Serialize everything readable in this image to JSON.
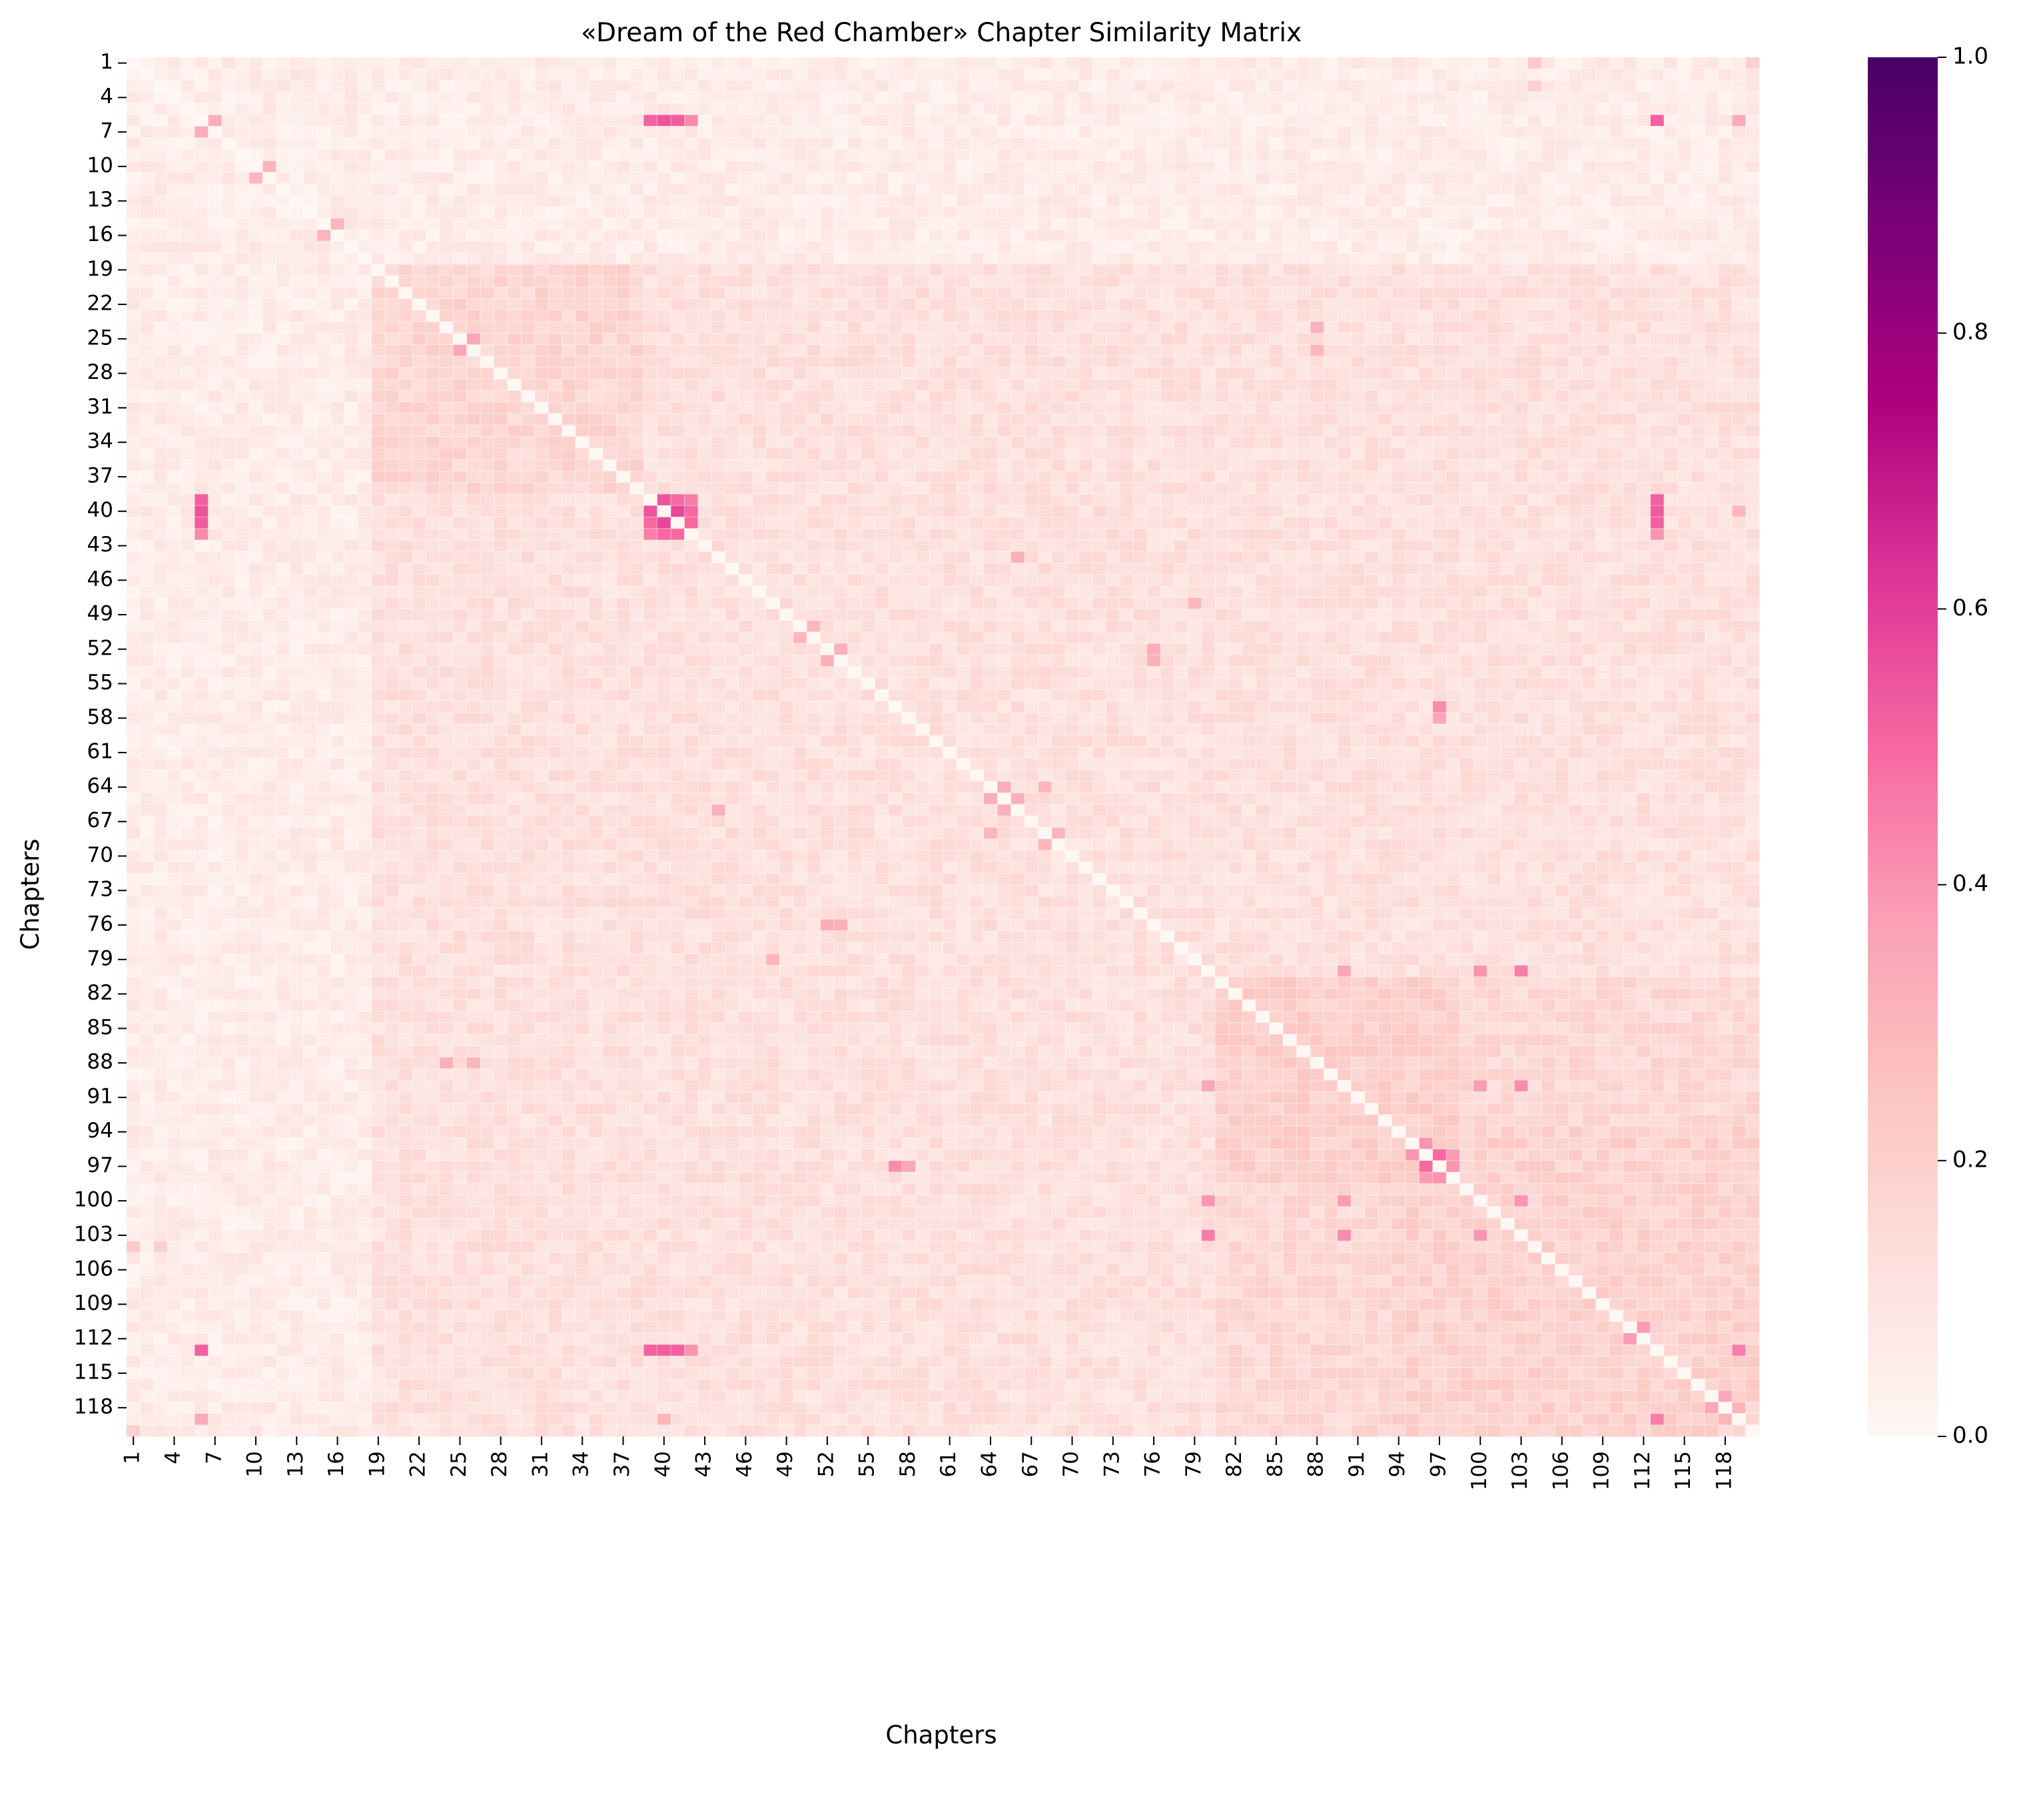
{
  "chart_data": {
    "type": "heatmap",
    "title": "«Dream of the Red Chamber» Chapter Similarity Matrix",
    "xlabel": "Chapters",
    "ylabel": "Chapters",
    "n": 120,
    "tick_labels": [
      "1",
      "4",
      "7",
      "10",
      "13",
      "16",
      "19",
      "22",
      "25",
      "28",
      "31",
      "34",
      "37",
      "40",
      "43",
      "46",
      "49",
      "52",
      "55",
      "58",
      "61",
      "64",
      "67",
      "70",
      "73",
      "76",
      "79",
      "82",
      "85",
      "88",
      "91",
      "94",
      "97",
      "100",
      "103",
      "106",
      "109",
      "112",
      "115",
      "118"
    ],
    "tick_chapters": [
      1,
      4,
      7,
      10,
      13,
      16,
      19,
      22,
      25,
      28,
      31,
      34,
      37,
      40,
      43,
      46,
      49,
      52,
      55,
      58,
      61,
      64,
      67,
      70,
      73,
      76,
      79,
      82,
      85,
      88,
      91,
      94,
      97,
      100,
      103,
      106,
      109,
      112,
      115,
      118
    ],
    "colorbar": {
      "min": 0.0,
      "max": 1.0,
      "ticks": [
        "0.0",
        "0.2",
        "0.4",
        "0.6",
        "0.8",
        "1.0"
      ],
      "tick_values": [
        0.0,
        0.2,
        0.4,
        0.6,
        0.8,
        1.0
      ],
      "colormap": "RdPu",
      "colors": [
        "#fff7f3",
        "#fde0dd",
        "#fcc5c0",
        "#fa9fb5",
        "#f768a1",
        "#dd3497",
        "#ae017e",
        "#7a0177",
        "#49006a"
      ]
    },
    "diagonal_value": 0.0,
    "background_similarity": {
      "chapters_1_to_18": 0.06,
      "chapters_19_to_80": 0.12,
      "chapters_81_to_120": 0.16,
      "chapters_19_to_38_block": 0.17,
      "chapters_81_to_98_block": 0.2,
      "chapters_94_to_120_block": 0.19
    },
    "notable_pairs": [
      {
        "a": 6,
        "b": 39,
        "value": 0.52
      },
      {
        "a": 6,
        "b": 40,
        "value": 0.55
      },
      {
        "a": 6,
        "b": 41,
        "value": 0.53
      },
      {
        "a": 6,
        "b": 42,
        "value": 0.42
      },
      {
        "a": 6,
        "b": 113,
        "value": 0.52
      },
      {
        "a": 6,
        "b": 119,
        "value": 0.34
      },
      {
        "a": 39,
        "b": 40,
        "value": 0.55
      },
      {
        "a": 39,
        "b": 41,
        "value": 0.5
      },
      {
        "a": 39,
        "b": 42,
        "value": 0.45
      },
      {
        "a": 40,
        "b": 41,
        "value": 0.58
      },
      {
        "a": 40,
        "b": 42,
        "value": 0.5
      },
      {
        "a": 41,
        "b": 42,
        "value": 0.5
      },
      {
        "a": 39,
        "b": 113,
        "value": 0.52
      },
      {
        "a": 40,
        "b": 113,
        "value": 0.53
      },
      {
        "a": 41,
        "b": 113,
        "value": 0.52
      },
      {
        "a": 42,
        "b": 113,
        "value": 0.4
      },
      {
        "a": 40,
        "b": 119,
        "value": 0.3
      },
      {
        "a": 113,
        "b": 119,
        "value": 0.45
      },
      {
        "a": 7,
        "b": 6,
        "value": 0.33
      },
      {
        "a": 10,
        "b": 11,
        "value": 0.3
      },
      {
        "a": 15,
        "b": 16,
        "value": 0.3
      },
      {
        "a": 25,
        "b": 26,
        "value": 0.35
      },
      {
        "a": 24,
        "b": 88,
        "value": 0.32
      },
      {
        "a": 26,
        "b": 88,
        "value": 0.3
      },
      {
        "a": 50,
        "b": 51,
        "value": 0.3
      },
      {
        "a": 52,
        "b": 53,
        "value": 0.32
      },
      {
        "a": 52,
        "b": 76,
        "value": 0.33
      },
      {
        "a": 53,
        "b": 76,
        "value": 0.32
      },
      {
        "a": 57,
        "b": 97,
        "value": 0.42
      },
      {
        "a": 58,
        "b": 97,
        "value": 0.35
      },
      {
        "a": 64,
        "b": 65,
        "value": 0.33
      },
      {
        "a": 65,
        "b": 66,
        "value": 0.32
      },
      {
        "a": 64,
        "b": 68,
        "value": 0.3
      },
      {
        "a": 68,
        "b": 69,
        "value": 0.3
      },
      {
        "a": 66,
        "b": 44,
        "value": 0.32
      },
      {
        "a": 48,
        "b": 79,
        "value": 0.3
      },
      {
        "a": 80,
        "b": 90,
        "value": 0.35
      },
      {
        "a": 80,
        "b": 100,
        "value": 0.4
      },
      {
        "a": 80,
        "b": 103,
        "value": 0.45
      },
      {
        "a": 90,
        "b": 100,
        "value": 0.38
      },
      {
        "a": 90,
        "b": 103,
        "value": 0.42
      },
      {
        "a": 100,
        "b": 103,
        "value": 0.4
      },
      {
        "a": 95,
        "b": 96,
        "value": 0.4
      },
      {
        "a": 96,
        "b": 97,
        "value": 0.5
      },
      {
        "a": 97,
        "b": 98,
        "value": 0.4
      },
      {
        "a": 96,
        "b": 98,
        "value": 0.38
      },
      {
        "a": 111,
        "b": 112,
        "value": 0.38
      },
      {
        "a": 117,
        "b": 118,
        "value": 0.35
      },
      {
        "a": 118,
        "b": 119,
        "value": 0.3
      },
      {
        "a": 1,
        "b": 104,
        "value": 0.22
      },
      {
        "a": 3,
        "b": 104,
        "value": 0.2
      },
      {
        "a": 1,
        "b": 120,
        "value": 0.2
      }
    ]
  }
}
